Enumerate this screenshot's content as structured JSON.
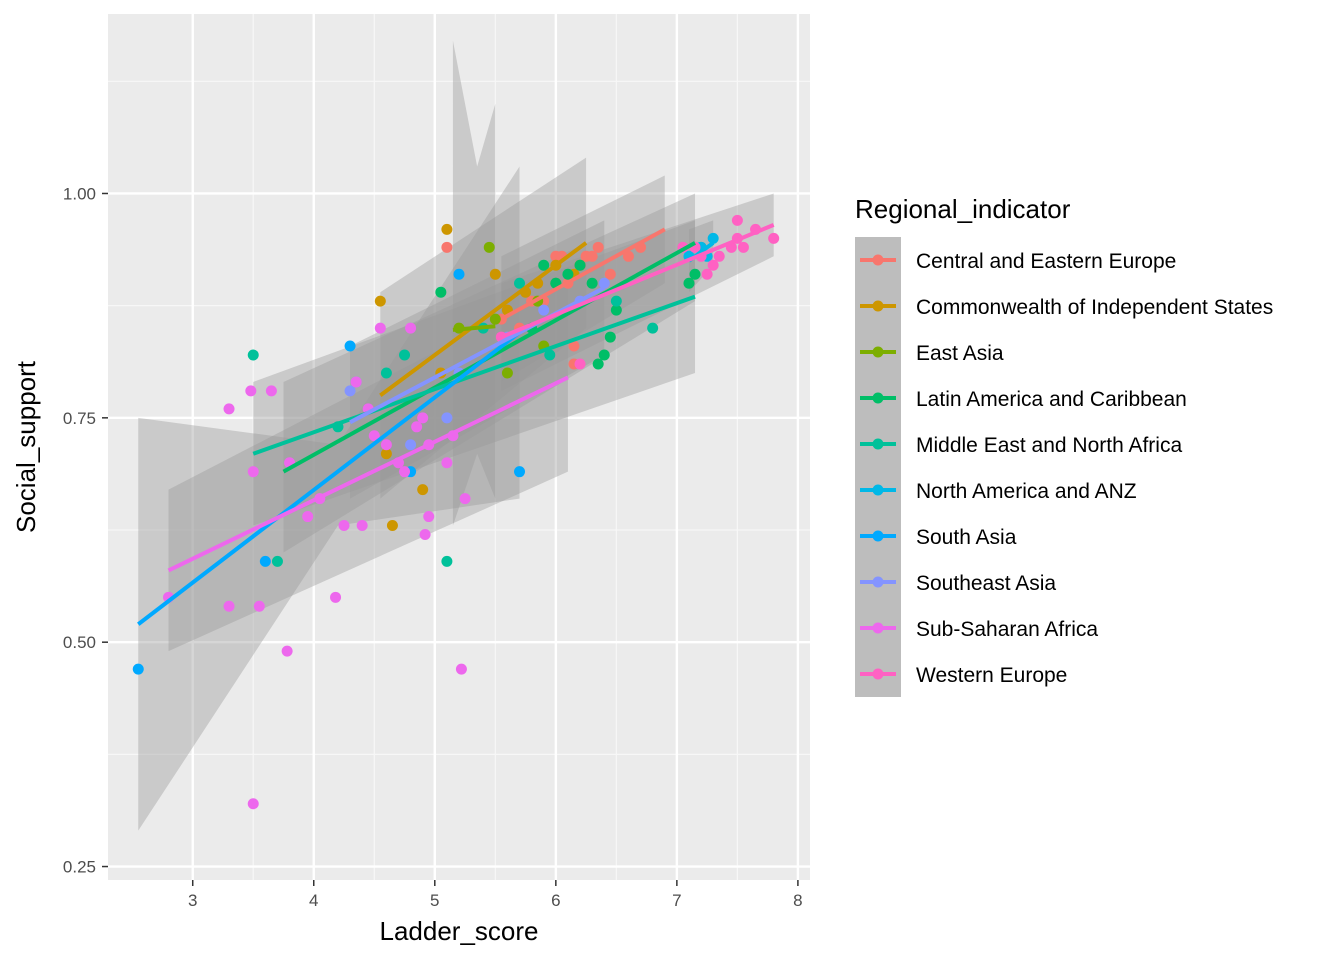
{
  "chart_data": {
    "type": "scatter",
    "title": "",
    "xlabel": "Ladder_score",
    "ylabel": "Social_support",
    "xlim": [
      2.3,
      8.1
    ],
    "ylim": [
      0.235,
      1.2
    ],
    "x_ticks": [
      3,
      4,
      5,
      6,
      7,
      8
    ],
    "y_ticks": [
      0.25,
      0.5,
      0.75,
      1.0
    ],
    "x_tick_labels": [
      "3",
      "4",
      "5",
      "6",
      "7",
      "8"
    ],
    "y_tick_labels": [
      "0.25",
      "0.50",
      "0.75",
      "1.00"
    ],
    "grid": true,
    "legend": {
      "title": "Regional_indicator",
      "position": "right"
    },
    "series": [
      {
        "name": "Central and Eastern Europe",
        "color": "#F8766D",
        "points": [
          [
            5.7,
            0.85
          ],
          [
            5.8,
            0.88
          ],
          [
            5.9,
            0.88
          ],
          [
            6.0,
            0.93
          ],
          [
            6.05,
            0.93
          ],
          [
            6.1,
            0.9
          ],
          [
            6.2,
            0.92
          ],
          [
            6.25,
            0.93
          ],
          [
            6.3,
            0.93
          ],
          [
            6.35,
            0.94
          ],
          [
            6.45,
            0.91
          ],
          [
            6.6,
            0.93
          ],
          [
            6.7,
            0.94
          ],
          [
            6.15,
            0.83
          ],
          [
            6.15,
            0.81
          ],
          [
            5.55,
            0.86
          ]
        ],
        "fit": {
          "x": [
            5.55,
            6.9
          ],
          "y": [
            0.86,
            0.96
          ],
          "band": [
            [
              5.55,
              0.79,
              0.93
            ],
            [
              6.9,
              0.9,
              1.02
            ]
          ]
        }
      },
      {
        "name": "Commonwealth of Independent States",
        "color": "#CD9600",
        "points": [
          [
            4.55,
            0.88
          ],
          [
            5.1,
            0.96
          ],
          [
            4.65,
            0.63
          ],
          [
            4.9,
            0.67
          ],
          [
            5.5,
            0.91
          ],
          [
            5.6,
            0.87
          ],
          [
            5.75,
            0.89
          ],
          [
            5.85,
            0.9
          ],
          [
            6.0,
            0.92
          ],
          [
            6.15,
            0.91
          ],
          [
            6.2,
            0.92
          ],
          [
            4.6,
            0.71
          ],
          [
            5.05,
            0.8
          ]
        ],
        "fit": {
          "x": [
            4.55,
            6.25
          ],
          "y": [
            0.775,
            0.945
          ],
          "band": [
            [
              4.55,
              0.66,
              0.89
            ],
            [
              6.25,
              0.85,
              1.04
            ]
          ]
        }
      },
      {
        "name": "East Asia",
        "color": "#7CAE00",
        "points": [
          [
            5.2,
            0.85
          ],
          [
            5.45,
            0.94
          ],
          [
            5.5,
            0.86
          ],
          [
            5.6,
            0.8
          ],
          [
            5.9,
            0.83
          ],
          [
            6.0,
            0.9
          ],
          [
            5.85,
            0.88
          ]
        ],
        "fit": {
          "x": [
            5.15,
            5.5
          ],
          "y": [
            0.848,
            0.852
          ],
          "band": [
            [
              5.15,
              0.63,
              1.17
            ],
            [
              5.35,
              0.71,
              1.03
            ],
            [
              5.5,
              0.66,
              1.1
            ]
          ]
        }
      },
      {
        "name": "Latin America and Caribbean",
        "color": "#00BE67",
        "points": [
          [
            5.05,
            0.89
          ],
          [
            5.9,
            0.92
          ],
          [
            6.0,
            0.9
          ],
          [
            6.1,
            0.91
          ],
          [
            6.2,
            0.92
          ],
          [
            6.35,
            0.81
          ],
          [
            6.45,
            0.84
          ],
          [
            6.4,
            0.82
          ],
          [
            7.1,
            0.9
          ],
          [
            7.15,
            0.91
          ],
          [
            5.8,
            0.85
          ],
          [
            6.3,
            0.9
          ],
          [
            6.5,
            0.87
          ]
        ],
        "fit": {
          "x": [
            3.75,
            7.15
          ],
          "y": [
            0.69,
            0.945
          ],
          "band": [
            [
              3.75,
              0.6,
              0.79
            ],
            [
              7.15,
              0.88,
              1.0
            ]
          ]
        }
      },
      {
        "name": "Middle East and North Africa",
        "color": "#00C19A",
        "points": [
          [
            3.5,
            0.82
          ],
          [
            3.7,
            0.59
          ],
          [
            4.2,
            0.74
          ],
          [
            4.6,
            0.8
          ],
          [
            4.75,
            0.82
          ],
          [
            5.1,
            0.59
          ],
          [
            5.4,
            0.85
          ],
          [
            5.7,
            0.9
          ],
          [
            5.95,
            0.82
          ],
          [
            6.5,
            0.88
          ],
          [
            6.8,
            0.85
          ],
          [
            7.2,
            0.94
          ]
        ],
        "fit": {
          "x": [
            3.5,
            7.15
          ],
          "y": [
            0.71,
            0.885
          ],
          "band": [
            [
              3.5,
              0.63,
              0.79
            ],
            [
              7.15,
              0.8,
              0.97
            ]
          ]
        }
      },
      {
        "name": "North America and ANZ",
        "color": "#00B8E7",
        "points": [
          [
            7.2,
            0.94
          ],
          [
            7.25,
            0.93
          ],
          [
            7.3,
            0.95
          ],
          [
            7.1,
            0.93
          ]
        ],
        "fit": {
          "x": [
            7.1,
            7.3
          ],
          "y": [
            0.925,
            0.945
          ],
          "band": [
            [
              7.1,
              0.89,
              0.96
            ],
            [
              7.3,
              0.92,
              0.97
            ]
          ]
        }
      },
      {
        "name": "South Asia",
        "color": "#00A9FF",
        "points": [
          [
            2.55,
            0.47
          ],
          [
            4.3,
            0.83
          ],
          [
            5.2,
            0.91
          ],
          [
            5.7,
            0.69
          ],
          [
            4.8,
            0.69
          ],
          [
            3.6,
            0.59
          ]
        ],
        "fit": {
          "x": [
            2.55,
            5.7
          ],
          "y": [
            0.52,
            0.845
          ],
          "band": [
            [
              2.55,
              0.29,
              0.75
            ],
            [
              4.2,
              0.63,
              0.72
            ],
            [
              5.7,
              0.66,
              1.03
            ]
          ]
        }
      },
      {
        "name": "Southeast Asia",
        "color": "#8494FF",
        "points": [
          [
            4.3,
            0.78
          ],
          [
            4.35,
            0.79
          ],
          [
            4.8,
            0.72
          ],
          [
            5.2,
            0.8
          ],
          [
            5.6,
            0.84
          ],
          [
            5.9,
            0.87
          ],
          [
            6.2,
            0.88
          ],
          [
            6.4,
            0.9
          ],
          [
            5.1,
            0.75
          ]
        ],
        "fit": {
          "x": [
            4.3,
            6.4
          ],
          "y": [
            0.745,
            0.895
          ],
          "band": [
            [
              4.3,
              0.66,
              0.83
            ],
            [
              6.4,
              0.82,
              0.97
            ]
          ]
        }
      },
      {
        "name": "Sub-Saharan Africa",
        "color": "#ED68ED",
        "points": [
          [
            2.8,
            0.55
          ],
          [
            3.3,
            0.54
          ],
          [
            3.3,
            0.76
          ],
          [
            3.5,
            0.32
          ],
          [
            3.5,
            0.69
          ],
          [
            3.55,
            0.54
          ],
          [
            3.65,
            0.78
          ],
          [
            3.8,
            0.7
          ],
          [
            3.95,
            0.64
          ],
          [
            4.05,
            0.66
          ],
          [
            4.25,
            0.63
          ],
          [
            4.4,
            0.63
          ],
          [
            4.5,
            0.73
          ],
          [
            4.55,
            0.85
          ],
          [
            4.6,
            0.72
          ],
          [
            4.7,
            0.7
          ],
          [
            4.75,
            0.69
          ],
          [
            4.8,
            0.85
          ],
          [
            4.85,
            0.74
          ],
          [
            4.95,
            0.72
          ],
          [
            5.1,
            0.7
          ],
          [
            5.15,
            0.73
          ],
          [
            5.25,
            0.66
          ],
          [
            4.9,
            0.75
          ],
          [
            4.45,
            0.76
          ],
          [
            4.35,
            0.79
          ],
          [
            4.95,
            0.64
          ]
        ],
        "fit": {
          "x": [
            2.8,
            6.1
          ],
          "y": [
            0.58,
            0.795
          ],
          "band": [
            [
              2.8,
              0.49,
              0.67
            ],
            [
              6.1,
              0.69,
              0.9
            ]
          ]
        }
      },
      {
        "name": "Western Europe",
        "color": "#FF61C3",
        "points": [
          [
            5.55,
            0.84
          ],
          [
            6.2,
            0.81
          ],
          [
            7.05,
            0.94
          ],
          [
            7.15,
            0.94
          ],
          [
            7.25,
            0.91
          ],
          [
            7.35,
            0.93
          ],
          [
            7.45,
            0.94
          ],
          [
            7.5,
            0.95
          ],
          [
            7.5,
            0.97
          ],
          [
            7.55,
            0.94
          ],
          [
            7.65,
            0.96
          ],
          [
            7.8,
            0.95
          ],
          [
            7.3,
            0.92
          ],
          [
            7.2,
            0.93
          ]
        ],
        "fit": {
          "x": [
            5.55,
            7.8
          ],
          "y": [
            0.84,
            0.965
          ],
          "band": [
            [
              5.55,
              0.78,
              0.9
            ],
            [
              7.8,
              0.93,
              1.0
            ]
          ]
        }
      }
    ],
    "extra_points": [
      {
        "x": 3.78,
        "y": 0.49,
        "color": "#ED68ED"
      },
      {
        "x": 4.18,
        "y": 0.55,
        "color": "#ED68ED"
      },
      {
        "x": 4.92,
        "y": 0.62,
        "color": "#ED68ED"
      },
      {
        "x": 5.22,
        "y": 0.47,
        "color": "#ED68ED"
      },
      {
        "x": 3.48,
        "y": 0.78,
        "color": "#ED68ED"
      },
      {
        "x": 5.1,
        "y": 0.94,
        "color": "#F8766D"
      }
    ]
  }
}
